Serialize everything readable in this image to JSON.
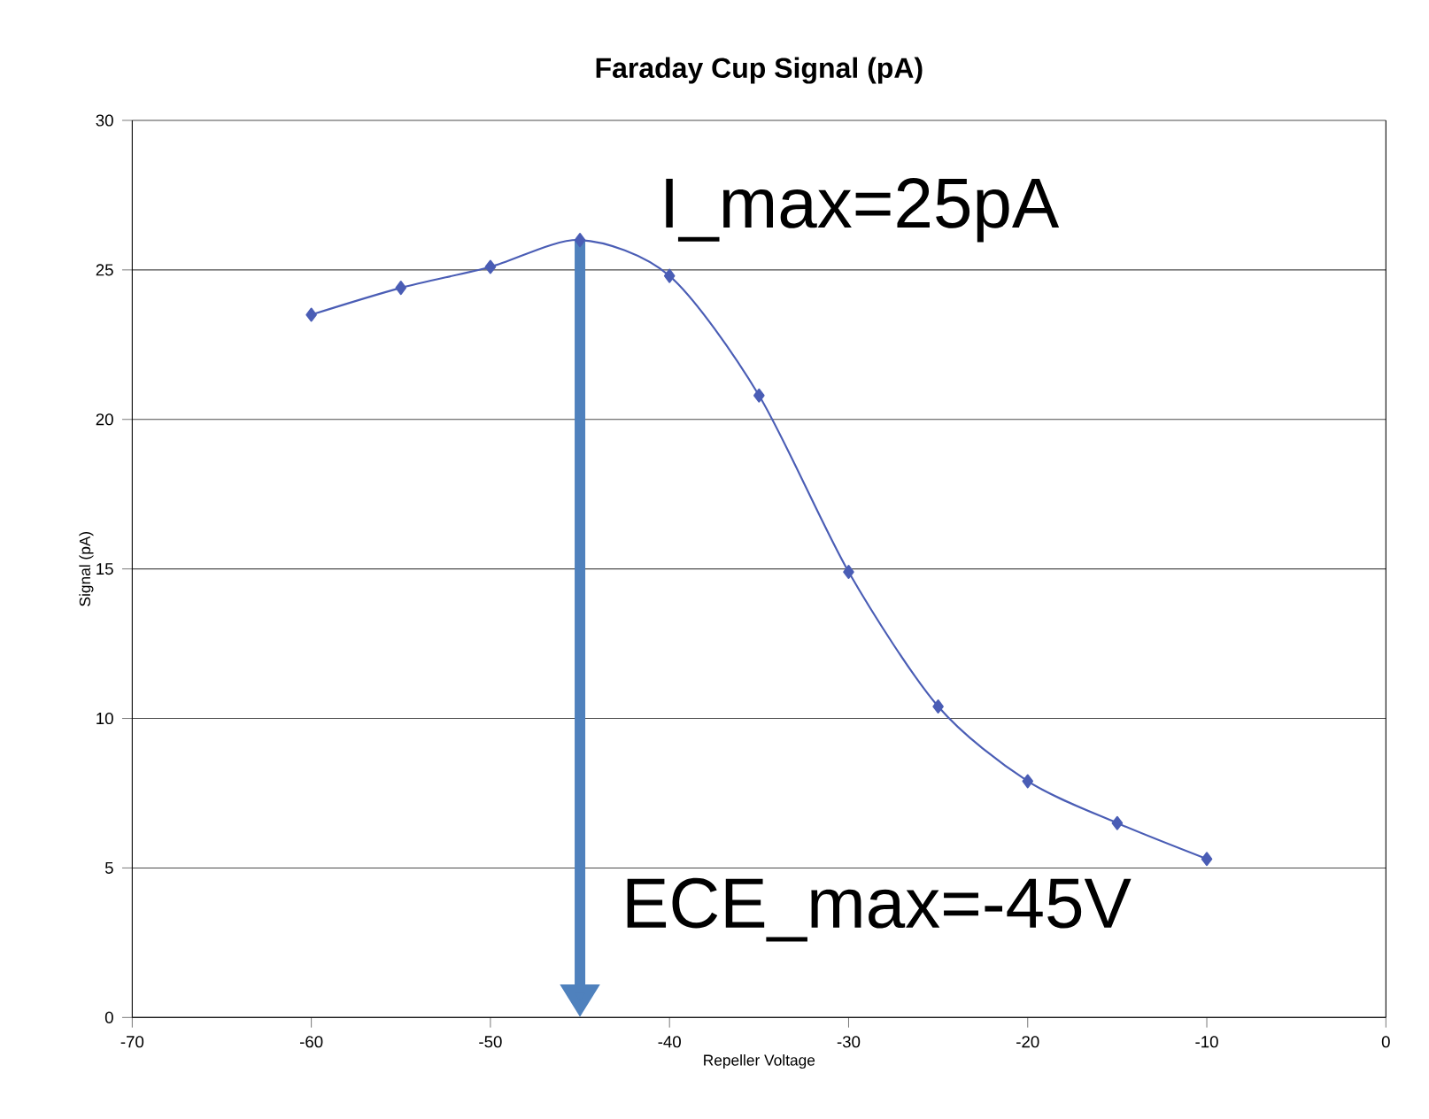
{
  "chart_data": {
    "type": "line",
    "title": "Faraday Cup Signal (pA)",
    "xlabel": "Repeller Voltage",
    "ylabel": "Signal (pA)",
    "x": [
      -60,
      -55,
      -50,
      -45,
      -40,
      -35,
      -30,
      -25,
      -20,
      -15,
      -10
    ],
    "series": [
      {
        "color": "#4a5db5",
        "values": [
          23.5,
          24.4,
          25.1,
          26.0,
          24.8,
          20.8,
          14.9,
          10.4,
          7.9,
          6.5,
          5.3
        ]
      }
    ],
    "xlim": [
      -70,
      0
    ],
    "xticks": [
      -70,
      -60,
      -50,
      -40,
      -30,
      -20,
      -10,
      0
    ],
    "ylim": [
      0,
      30
    ],
    "yticks": [
      0,
      5,
      10,
      15,
      20,
      25,
      30
    ],
    "grid": "y",
    "marker": "diamond",
    "line_style": "solid",
    "annotations": [
      "I_max=25pA",
      {
        "text": "ECE_max=-45V",
        "x": -45,
        "y": 26
      }
    ]
  }
}
